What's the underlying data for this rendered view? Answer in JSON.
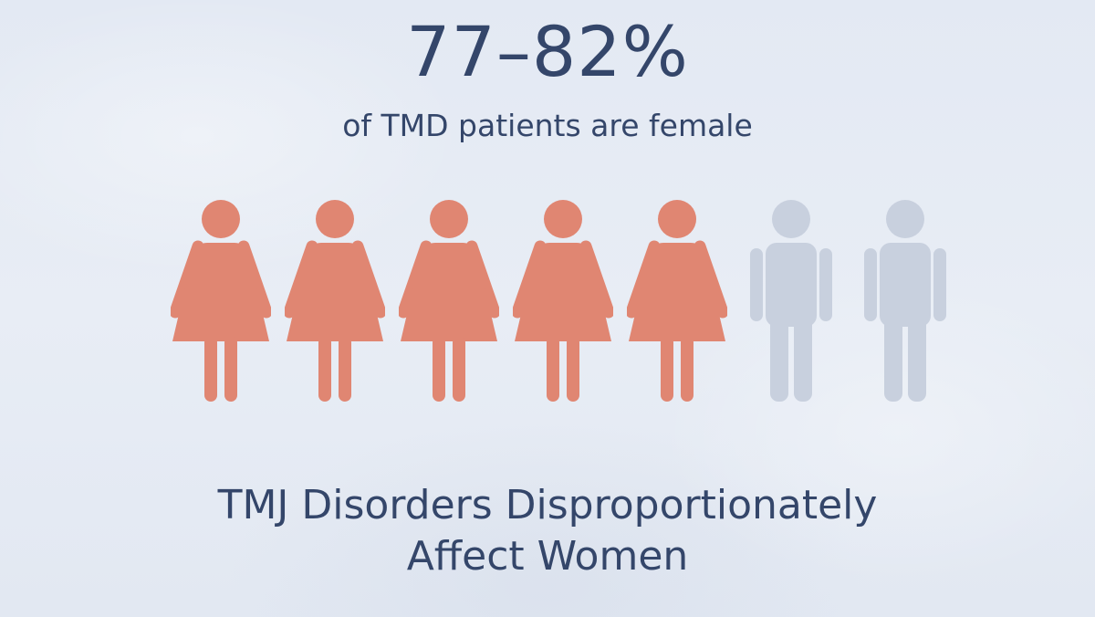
{
  "headline": "77–82%",
  "subtitle": "of TMD patients are female",
  "caption_line1": "TMJ Disorders Disproportionately",
  "caption_line2": "Affect Women",
  "figures": [
    {
      "type": "female",
      "color": "#e08672"
    },
    {
      "type": "female",
      "color": "#e08672"
    },
    {
      "type": "female",
      "color": "#e08672"
    },
    {
      "type": "female",
      "color": "#e08672"
    },
    {
      "type": "female",
      "color": "#e08672"
    },
    {
      "type": "male",
      "color": "#c8d0de"
    },
    {
      "type": "male",
      "color": "#c8d0de"
    }
  ],
  "icons": {
    "female": "female-person-icon",
    "male": "male-person-icon"
  }
}
